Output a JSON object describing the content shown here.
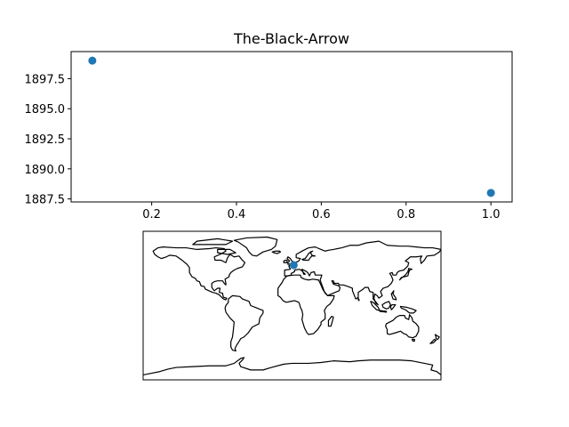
{
  "chart_data": [
    {
      "type": "scatter",
      "title": "The-Black-Arrow",
      "xlabel": "",
      "ylabel": "",
      "xlim": [
        0.01,
        1.05
      ],
      "ylim": [
        1887.25,
        1899.75
      ],
      "xticks": [
        0.2,
        0.4,
        0.6,
        0.8,
        1.0
      ],
      "xtick_labels": [
        "0.2",
        "0.4",
        "0.6",
        "0.8",
        "1.0"
      ],
      "yticks": [
        1887.5,
        1890.0,
        1892.5,
        1895.0,
        1897.5
      ],
      "ytick_labels": [
        "1887.5",
        "1890.0",
        "1892.5",
        "1895.0",
        "1897.5"
      ],
      "grid": false,
      "points": [
        {
          "x": 0.06,
          "y": 1899.0
        },
        {
          "x": 1.0,
          "y": 1888.0
        }
      ],
      "color": "#1f77b4"
    },
    {
      "type": "map",
      "projection": "plate-carree",
      "extent": {
        "lon": [
          -180,
          180
        ],
        "lat": [
          -90,
          90
        ]
      },
      "points": [
        {
          "lon": 2.0,
          "lat": 49.0
        }
      ],
      "color": "#1f77b4"
    }
  ]
}
